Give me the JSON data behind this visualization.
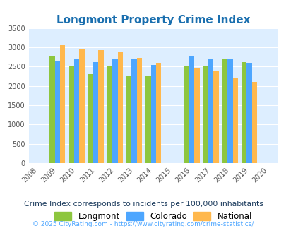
{
  "title": "Longmont Property Crime Index",
  "title_color": "#1a6faf",
  "years": [
    2008,
    2009,
    2010,
    2011,
    2012,
    2013,
    2014,
    2015,
    2016,
    2017,
    2018,
    2019,
    2020
  ],
  "data_years": [
    2009,
    2010,
    2011,
    2012,
    2013,
    2014,
    2016,
    2017,
    2018,
    2019
  ],
  "longmont": [
    2780,
    2500,
    2310,
    2510,
    2250,
    2260,
    2500,
    2500,
    2700,
    2620
  ],
  "colorado": [
    2660,
    2680,
    2620,
    2680,
    2680,
    2540,
    2770,
    2700,
    2680,
    2590
  ],
  "national": [
    3050,
    2960,
    2920,
    2870,
    2730,
    2600,
    2470,
    2380,
    2210,
    2110
  ],
  "longmont_color": "#8dc63f",
  "colorado_color": "#4da6ff",
  "national_color": "#ffb84d",
  "bg_color": "#ddeeff",
  "ylim": [
    0,
    3500
  ],
  "yticks": [
    0,
    500,
    1000,
    1500,
    2000,
    2500,
    3000,
    3500
  ],
  "subtitle": "Crime Index corresponds to incidents per 100,000 inhabitants",
  "subtitle_color": "#1a3a5c",
  "footer": "© 2025 CityRating.com - https://www.cityrating.com/crime-statistics/",
  "footer_color": "#4da6ff",
  "bar_width": 0.27,
  "legend_labels": [
    "Longmont",
    "Colorado",
    "National"
  ]
}
